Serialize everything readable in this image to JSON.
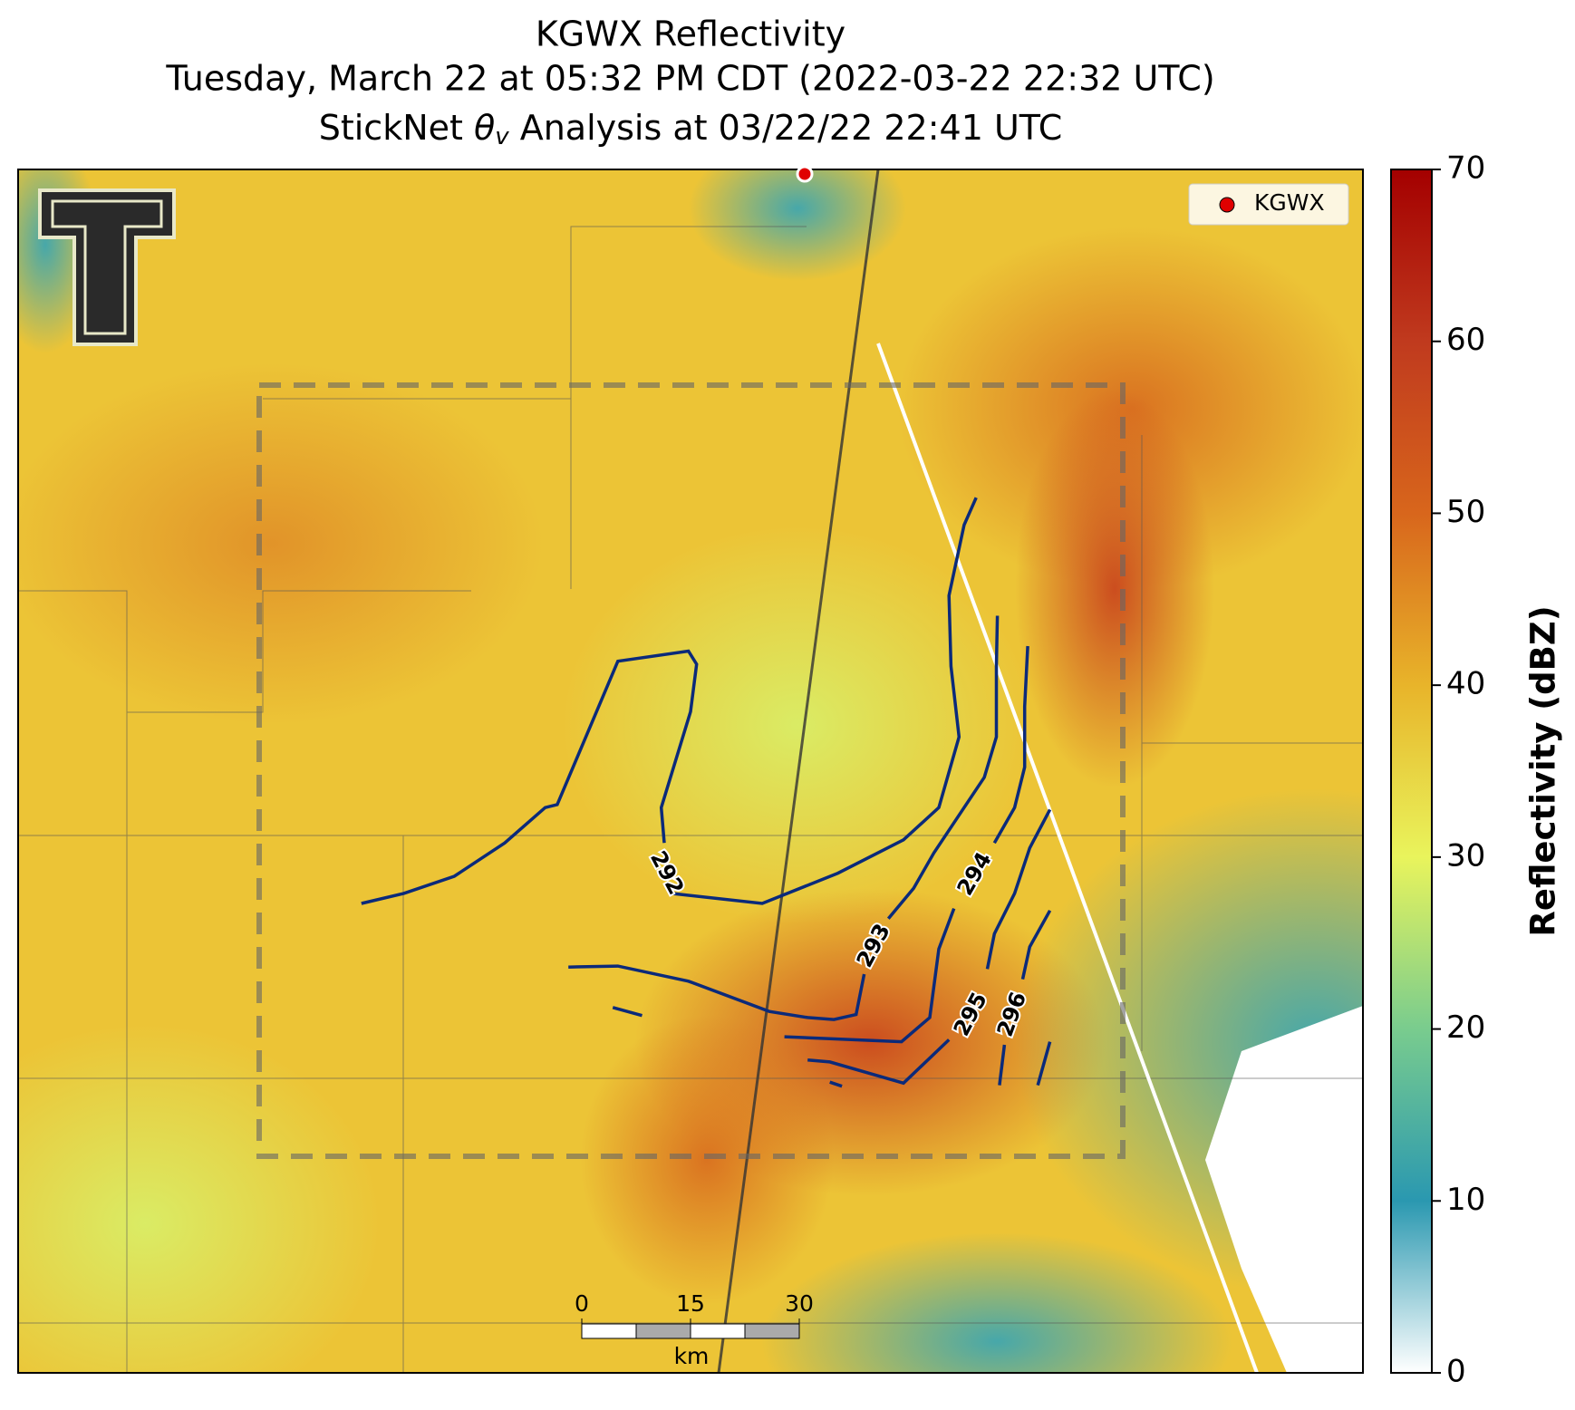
{
  "title_lines": [
    "KGWX Reflectivity",
    "Tuesday, March 22 at 05:32 PM CDT (2022-03-22 22:32 UTC)"
  ],
  "subtitle_parts": [
    "StickNet ",
    "θ",
    "v",
    " Analysis at 03/22/22 22:41 UTC"
  ],
  "legend": {
    "label": "KGWX",
    "color": "#e00000"
  },
  "colorbar": {
    "label": "Reflectivity (dBZ)",
    "ylim": [
      0,
      70
    ],
    "yticks": [
      0,
      10,
      20,
      30,
      40,
      50,
      60,
      70
    ],
    "colors": [
      "#ffffff",
      "#2a98b0",
      "#79cc8e",
      "#e9f45c",
      "#e8b42a",
      "#d8661c",
      "#c03a1e",
      "#a40000"
    ]
  },
  "contour_levels": [
    292,
    293,
    294,
    295,
    296
  ],
  "contour_color": "#0b2a7a",
  "scale_bar": {
    "xlim": [
      0,
      30
    ],
    "xticks": [
      0,
      15,
      30
    ],
    "unit": "km"
  }
}
